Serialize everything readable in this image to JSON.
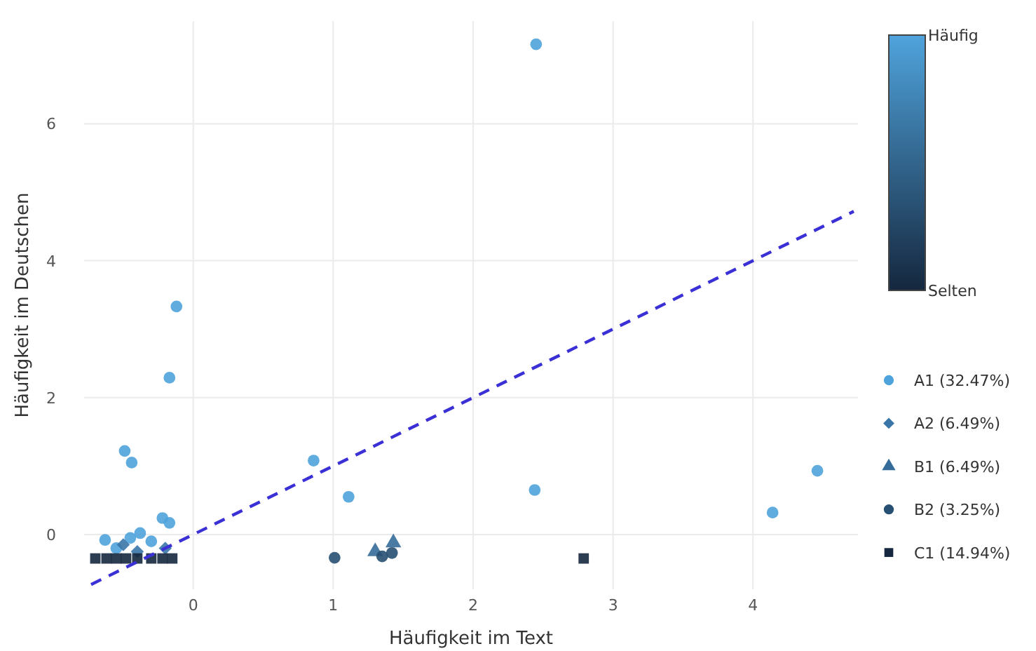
{
  "chart_data": {
    "type": "scatter",
    "xlabel": "Häufigkeit im Text",
    "ylabel": "Häufigkeit im Deutschen",
    "xlim": [
      -0.78,
      4.75
    ],
    "ylim": [
      -0.8,
      7.5
    ],
    "xticks": [
      0,
      1,
      2,
      3,
      4
    ],
    "yticks": [
      0,
      2,
      4,
      6
    ],
    "grid": true,
    "legend": "right",
    "annotations": [
      "Häufig",
      "Selten"
    ],
    "series": [
      {
        "name": "A1 (32.47%)",
        "color": "#4fa3dc",
        "marker": "circle",
        "x": [
          2.45,
          -0.12,
          -0.17,
          -0.49,
          -0.44,
          0.86,
          1.11,
          2.44,
          4.14,
          4.46,
          -0.22,
          -0.17,
          -0.63,
          -0.45,
          -0.38,
          -0.3,
          -0.55
        ],
        "values": [
          7.16,
          3.33,
          2.29,
          1.22,
          1.05,
          1.08,
          0.55,
          0.65,
          0.32,
          0.93,
          0.24,
          0.17,
          -0.08,
          -0.05,
          0.02,
          -0.1,
          -0.2
        ]
      },
      {
        "name": "A2 (6.49%)",
        "color": "#3a76a8",
        "marker": "diamond",
        "x": [
          -0.5,
          -0.4,
          -0.2
        ],
        "values": [
          -0.15,
          -0.25,
          -0.2
        ]
      },
      {
        "name": "B1 (6.49%)",
        "color": "#346b99",
        "marker": "triangle",
        "x": [
          1.3,
          1.43
        ],
        "values": [
          -0.25,
          -0.12
        ]
      },
      {
        "name": "B2 (3.25%)",
        "color": "#274f72",
        "marker": "circle",
        "x": [
          1.01,
          1.35,
          1.42
        ],
        "values": [
          -0.34,
          -0.32,
          -0.27
        ]
      },
      {
        "name": "C1 (14.94%)",
        "color": "#15273e",
        "marker": "square",
        "x": [
          2.79,
          -0.7,
          -0.62,
          -0.55,
          -0.48,
          -0.4,
          -0.3,
          -0.22,
          -0.15
        ],
        "values": [
          -0.35,
          -0.35,
          -0.35,
          -0.35,
          -0.35,
          -0.35,
          -0.35,
          -0.35,
          -0.35
        ]
      },
      {
        "type": "line",
        "color": "#3a30d6",
        "line_style": "dashed",
        "marker": "none",
        "x": [
          -0.73,
          4.72
        ],
        "values": [
          -0.73,
          4.72
        ]
      }
    ]
  }
}
